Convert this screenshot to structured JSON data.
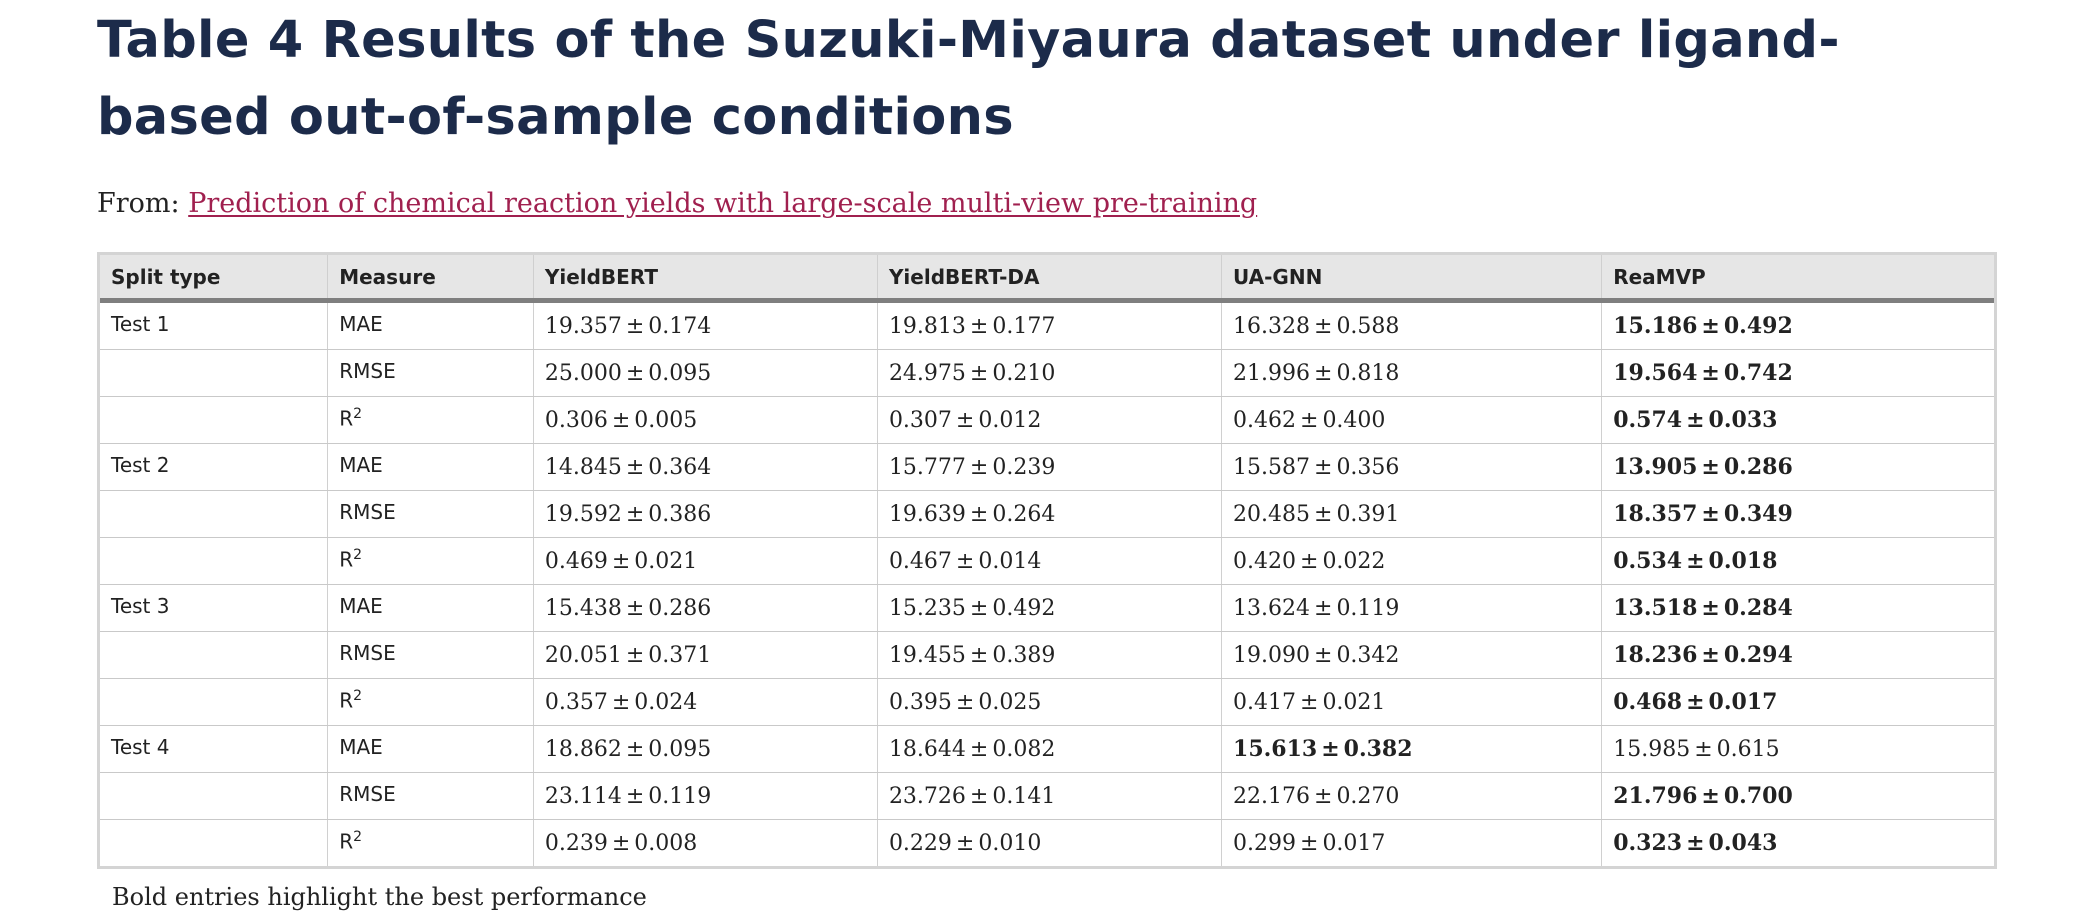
{
  "title": "Table 4 Results of the Suzuki-Miyaura dataset under ligand-based out-of-sample conditions",
  "from": {
    "prefix": "From:",
    "link_text": "Prediction of chemical reaction yields with large-scale multi-view pre-training"
  },
  "table": {
    "columns": [
      "Split type",
      "Measure",
      "YieldBERT",
      "YieldBERT-DA",
      "UA-GNN",
      "ReaMVP"
    ],
    "rows": [
      {
        "split": "Test 1",
        "measure": "MAE",
        "measure_sup": "",
        "values": [
          "19.357",
          "19.813",
          "16.328",
          "15.186"
        ],
        "stds": [
          "0.174",
          "0.177",
          "0.588",
          "0.492"
        ],
        "best": [
          false,
          false,
          false,
          true
        ]
      },
      {
        "split": "",
        "measure": "RMSE",
        "measure_sup": "",
        "values": [
          "25.000",
          "24.975",
          "21.996",
          "19.564"
        ],
        "stds": [
          "0.095",
          "0.210",
          "0.818",
          "0.742"
        ],
        "best": [
          false,
          false,
          false,
          true
        ]
      },
      {
        "split": "",
        "measure": "R",
        "measure_sup": "2",
        "values": [
          "0.306",
          "0.307",
          "0.462",
          "0.574"
        ],
        "stds": [
          "0.005",
          "0.012",
          "0.400",
          "0.033"
        ],
        "best": [
          false,
          false,
          false,
          true
        ]
      },
      {
        "split": "Test 2",
        "measure": "MAE",
        "measure_sup": "",
        "values": [
          "14.845",
          "15.777",
          "15.587",
          "13.905"
        ],
        "stds": [
          "0.364",
          "0.239",
          "0.356",
          "0.286"
        ],
        "best": [
          false,
          false,
          false,
          true
        ]
      },
      {
        "split": "",
        "measure": "RMSE",
        "measure_sup": "",
        "values": [
          "19.592",
          "19.639",
          "20.485",
          "18.357"
        ],
        "stds": [
          "0.386",
          "0.264",
          "0.391",
          "0.349"
        ],
        "best": [
          false,
          false,
          false,
          true
        ]
      },
      {
        "split": "",
        "measure": "R",
        "measure_sup": "2",
        "values": [
          "0.469",
          "0.467",
          "0.420",
          "0.534"
        ],
        "stds": [
          "0.021",
          "0.014",
          "0.022",
          "0.018"
        ],
        "best": [
          false,
          false,
          false,
          true
        ]
      },
      {
        "split": "Test 3",
        "measure": "MAE",
        "measure_sup": "",
        "values": [
          "15.438",
          "15.235",
          "13.624",
          "13.518"
        ],
        "stds": [
          "0.286",
          "0.492",
          "0.119",
          "0.284"
        ],
        "best": [
          false,
          false,
          false,
          true
        ]
      },
      {
        "split": "",
        "measure": "RMSE",
        "measure_sup": "",
        "values": [
          "20.051",
          "19.455",
          "19.090",
          "18.236"
        ],
        "stds": [
          "0.371",
          "0.389",
          "0.342",
          "0.294"
        ],
        "best": [
          false,
          false,
          false,
          true
        ]
      },
      {
        "split": "",
        "measure": "R",
        "measure_sup": "2",
        "values": [
          "0.357",
          "0.395",
          "0.417",
          "0.468"
        ],
        "stds": [
          "0.024",
          "0.025",
          "0.021",
          "0.017"
        ],
        "best": [
          false,
          false,
          false,
          true
        ]
      },
      {
        "split": "Test 4",
        "measure": "MAE",
        "measure_sup": "",
        "values": [
          "18.862",
          "18.644",
          "15.613",
          "15.985"
        ],
        "stds": [
          "0.095",
          "0.082",
          "0.382",
          "0.615"
        ],
        "best": [
          false,
          false,
          true,
          false
        ]
      },
      {
        "split": "",
        "measure": "RMSE",
        "measure_sup": "",
        "values": [
          "23.114",
          "23.726",
          "22.176",
          "21.796"
        ],
        "stds": [
          "0.119",
          "0.141",
          "0.270",
          "0.700"
        ],
        "best": [
          false,
          false,
          false,
          true
        ]
      },
      {
        "split": "",
        "measure": "R",
        "measure_sup": "2",
        "values": [
          "0.239",
          "0.229",
          "0.299",
          "0.323"
        ],
        "stds": [
          "0.008",
          "0.010",
          "0.017",
          "0.043"
        ],
        "best": [
          false,
          false,
          false,
          true
        ]
      }
    ]
  },
  "caption": "Bold entries highlight the best performance",
  "colors": {
    "title": "#1c2b4a",
    "link": "#a0204f",
    "header_bg": "#e6e6e6",
    "header_rule": "#7f7f7f"
  }
}
